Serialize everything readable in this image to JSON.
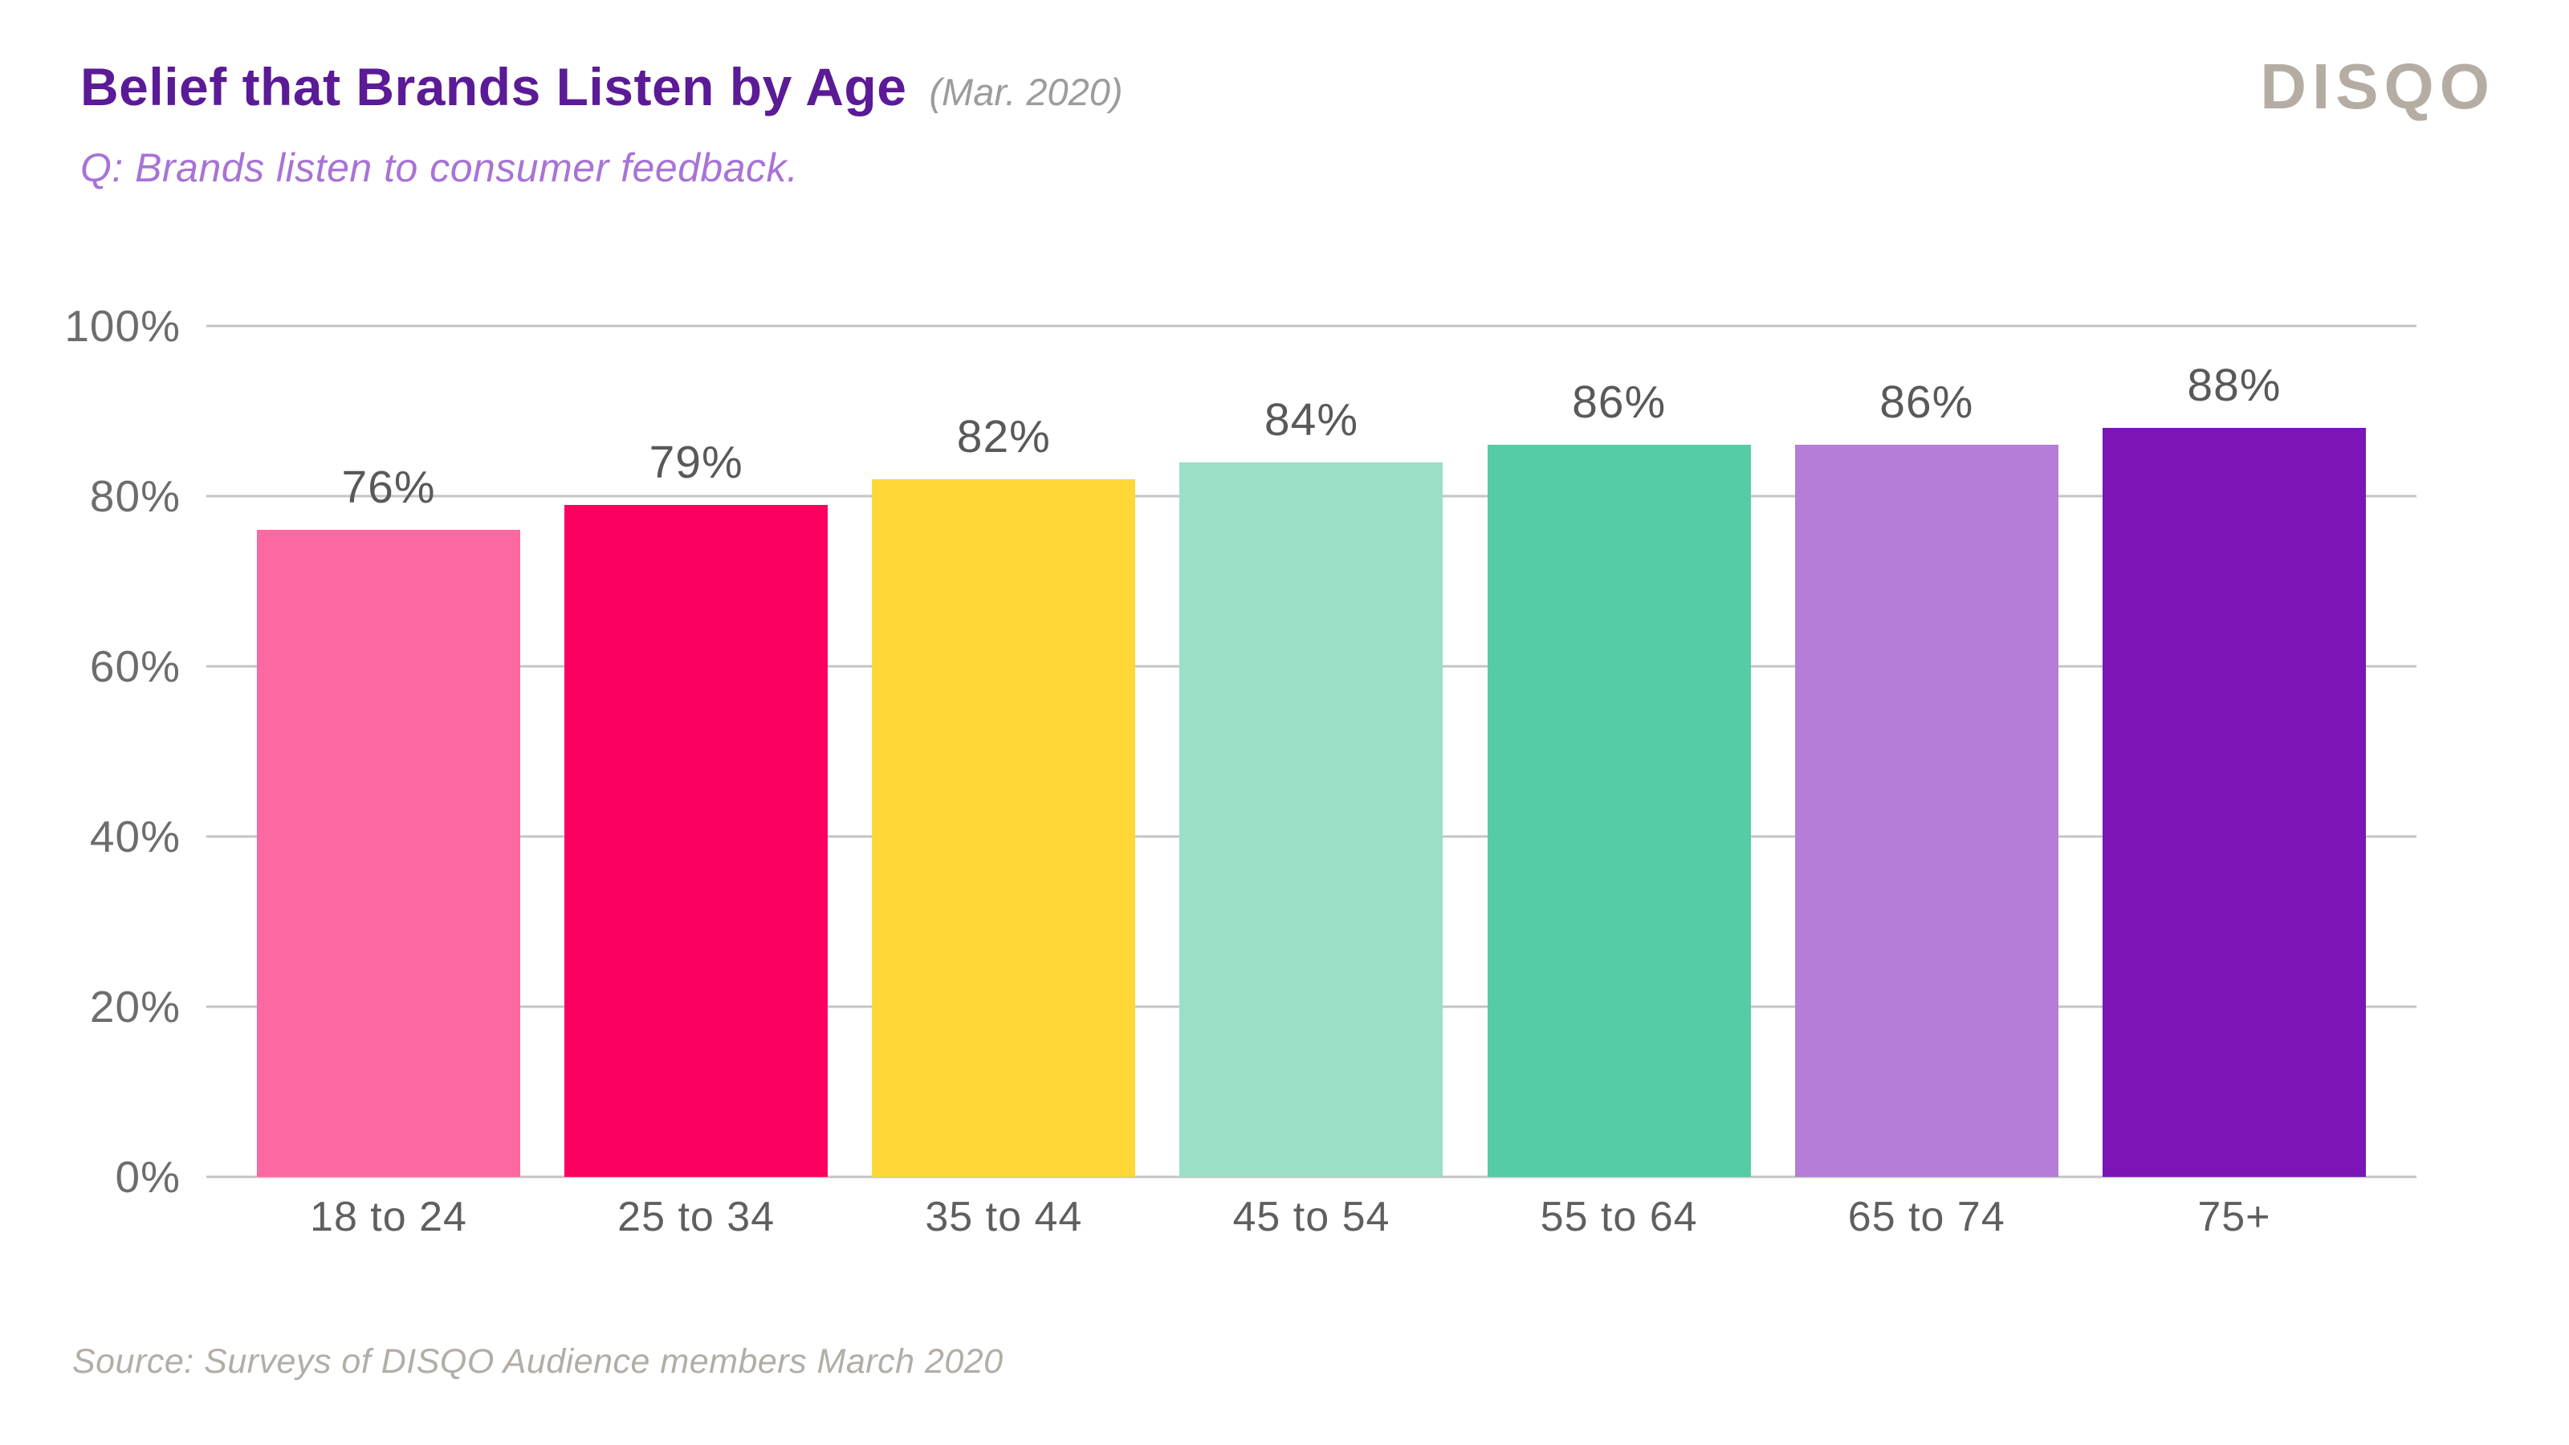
{
  "header": {
    "title": "Belief that Brands Listen by Age",
    "date_note": "(Mar. 2020)",
    "subtitle": "Q: Brands listen to consumer feedback.",
    "logo_text": "DISQO"
  },
  "footer": {
    "source": "Source: Surveys of DISQO Audience members March 2020"
  },
  "colors": {
    "title": "#5b1a96",
    "date_note": "#9c9c9c",
    "subtitle": "#a873d6",
    "logo": "#b5ada3",
    "grid": "#c4c4c4",
    "value_label": "#58595b",
    "axis_label": "#5f5f5f",
    "y_label": "#6d6d6d",
    "source": "#b2ada6"
  },
  "chart_data": {
    "type": "bar",
    "title": "Belief that Brands Listen by Age (Mar. 2020)",
    "question": "Q: Brands listen to consumer feedback.",
    "categories": [
      "18 to 24",
      "25 to 34",
      "35 to 44",
      "45 to 54",
      "55 to 64",
      "65 to 74",
      "75+"
    ],
    "values": [
      76,
      79,
      82,
      84,
      86,
      86,
      88
    ],
    "value_labels": [
      "76%",
      "79%",
      "82%",
      "84%",
      "86%",
      "86%",
      "88%"
    ],
    "bar_colors": [
      "#FB68A2",
      "#FB0060",
      "#FFD737",
      "#9ADFC6",
      "#55CCA6",
      "#B57CD8",
      "#7B15B6"
    ],
    "y_ticks": {
      "values": [
        100,
        80,
        60,
        40,
        20,
        0
      ],
      "labels": [
        "100%",
        "80%",
        "60%",
        "40%",
        "20%",
        "0%"
      ]
    },
    "ylim": [
      0,
      100
    ],
    "xlabel": "",
    "ylabel": "",
    "grid": "horizontal",
    "legend": "none",
    "source": "Source: Surveys of DISQO Audience members March 2020"
  }
}
